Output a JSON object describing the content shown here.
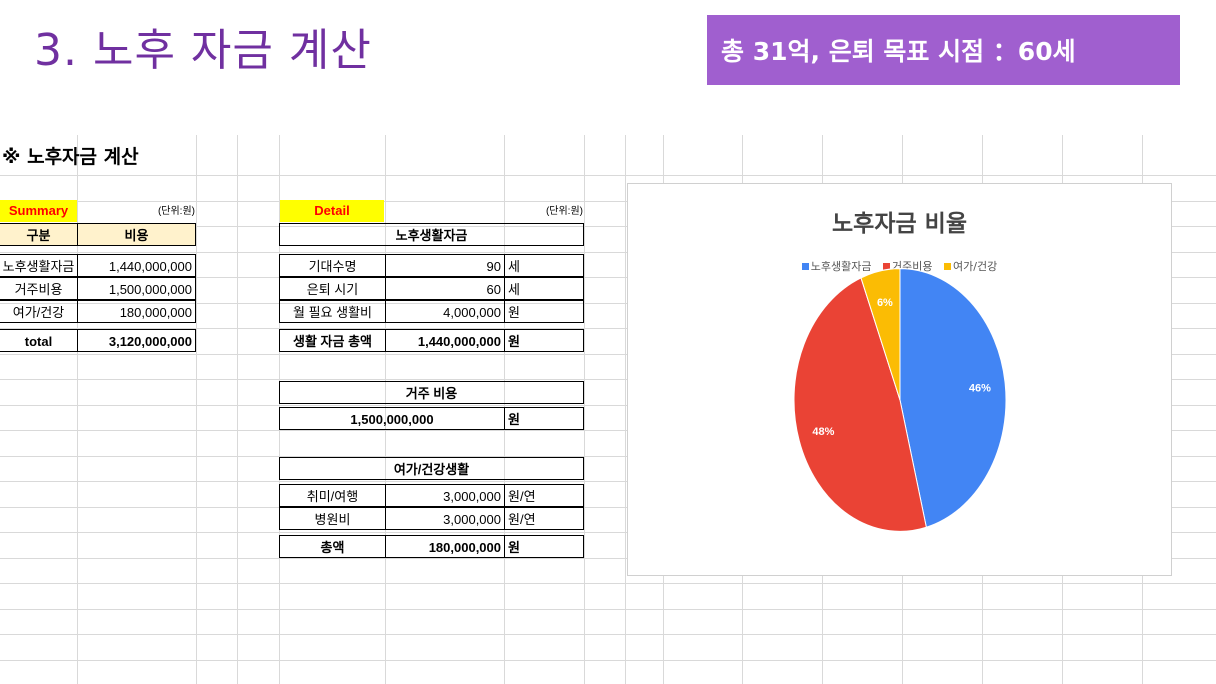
{
  "slide": {
    "title": "3. 노후 자금 계산",
    "banner": "총 31억, 은퇴 목표 시점 ：60세"
  },
  "sheet_title": "※ 노후자금 계산",
  "summary": {
    "tag": "Summary",
    "unit": "(단위:원)",
    "headers": [
      "구분",
      "비용"
    ],
    "rows": [
      {
        "label": "노후생활자금",
        "value": "1,440,000,000"
      },
      {
        "label": "거주비용",
        "value": "1,500,000,000"
      },
      {
        "label": "여가/건강",
        "value": "180,000,000"
      }
    ],
    "total": {
      "label": "total",
      "value": "3,120,000,000"
    }
  },
  "detail": {
    "tag": "Detail",
    "unit": "(단위:원)",
    "living": {
      "header": "노후생활자금",
      "rows": [
        {
          "label": "기대수명",
          "value": "90",
          "unit": "세"
        },
        {
          "label": "은퇴 시기",
          "value": "60",
          "unit": "세"
        },
        {
          "label": "월 필요 생활비",
          "value": "4,000,000",
          "unit": "원"
        }
      ],
      "total": {
        "label": "생활 자금 총액",
        "value": "1,440,000,000",
        "unit": "원"
      }
    },
    "housing": {
      "header": "거주 비용",
      "value": "1,500,000,000",
      "unit": "원"
    },
    "leisure": {
      "header": "여가/건강생활",
      "rows": [
        {
          "label": "취미/여행",
          "value": "3,000,000",
          "unit": "원/연"
        },
        {
          "label": "병원비",
          "value": "3,000,000",
          "unit": "원/연"
        }
      ],
      "total": {
        "label": "총액",
        "value": "180,000,000",
        "unit": "원"
      }
    }
  },
  "chart_data": {
    "type": "pie",
    "title": "노후자금 비율",
    "legend_position": "top",
    "categories": [
      "노후생활자금",
      "거주비용",
      "여가/건강"
    ],
    "values": [
      46,
      48,
      6
    ],
    "labels": [
      "46%",
      "48%",
      "6%"
    ],
    "colors": [
      "#4285f4",
      "#ea4335",
      "#fbbc04"
    ]
  }
}
